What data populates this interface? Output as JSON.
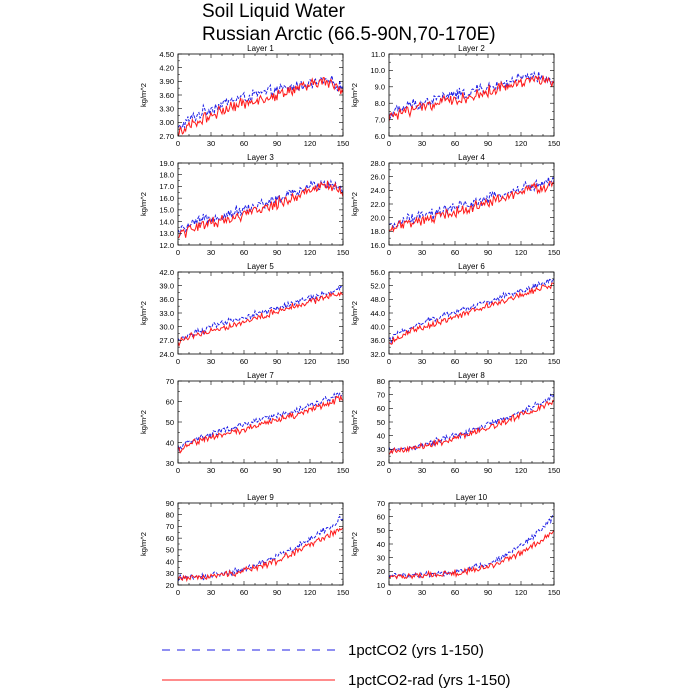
{
  "figure": {
    "title_line1": "Soil Liquid Water",
    "title_line2": "Russian Arctic (66.5-90N,70-170E)"
  },
  "legend": [
    {
      "label": "1pctCO2 (yrs 1-150)",
      "color": "#1f1fe6",
      "style": "dashed"
    },
    {
      "label": "1pctCO2-rad (yrs 1-150)",
      "color": "#ff1a1a",
      "style": "solid"
    }
  ],
  "chart_data": [
    {
      "type": "line",
      "title": "Layer 1",
      "ylabel": "kg/m^2",
      "xlim": [
        0,
        150
      ],
      "ylim": [
        2.7,
        4.5
      ],
      "xticks": [
        0,
        30,
        60,
        90,
        120,
        150
      ],
      "yticks": [
        2.7,
        3.0,
        3.3,
        3.6,
        3.9,
        4.2,
        4.5
      ],
      "ytick_labels": [
        "2.70",
        "3.00",
        "3.30",
        "3.60",
        "3.90",
        "4.20",
        "4.50"
      ],
      "x": [
        0,
        10,
        20,
        30,
        40,
        50,
        60,
        70,
        80,
        90,
        100,
        110,
        120,
        130,
        140,
        150
      ],
      "series": [
        {
          "name": "1pctCO2 (yrs 1-150)",
          "values": [
            2.85,
            3.05,
            3.2,
            3.3,
            3.4,
            3.5,
            3.55,
            3.6,
            3.65,
            3.7,
            3.75,
            3.8,
            3.85,
            3.9,
            3.88,
            3.75
          ]
        },
        {
          "name": "1pctCO2-rad (yrs 1-150)",
          "values": [
            2.75,
            2.95,
            3.05,
            3.15,
            3.25,
            3.35,
            3.4,
            3.5,
            3.55,
            3.6,
            3.7,
            3.75,
            3.8,
            3.9,
            3.85,
            3.7
          ]
        }
      ]
    },
    {
      "type": "line",
      "title": "Layer 2",
      "ylabel": "kg/m^2",
      "xlim": [
        0,
        150
      ],
      "ylim": [
        6.0,
        11.0
      ],
      "xticks": [
        0,
        30,
        60,
        90,
        120,
        150
      ],
      "yticks": [
        6.0,
        7.0,
        8.0,
        9.0,
        10.0,
        11.0
      ],
      "ytick_labels": [
        "6.0",
        "7.0",
        "8.0",
        "9.0",
        "10.0",
        "11.0"
      ],
      "x": [
        0,
        10,
        20,
        30,
        40,
        50,
        60,
        70,
        80,
        90,
        100,
        110,
        120,
        130,
        140,
        150
      ],
      "series": [
        {
          "name": "1pctCO2 (yrs 1-150)",
          "values": [
            7.3,
            7.6,
            7.9,
            8.0,
            8.2,
            8.4,
            8.5,
            8.6,
            8.8,
            8.9,
            9.1,
            9.3,
            9.5,
            9.6,
            9.5,
            9.3
          ]
        },
        {
          "name": "1pctCO2-rad (yrs 1-150)",
          "values": [
            7.1,
            7.4,
            7.6,
            7.8,
            7.9,
            8.1,
            8.2,
            8.3,
            8.5,
            8.7,
            8.9,
            9.1,
            9.3,
            9.5,
            9.4,
            9.1
          ]
        }
      ]
    },
    {
      "type": "line",
      "title": "Layer 3",
      "ylabel": "kg/m^2",
      "xlim": [
        0,
        150
      ],
      "ylim": [
        12.0,
        19.0
      ],
      "xticks": [
        0,
        30,
        60,
        90,
        120,
        150
      ],
      "yticks": [
        12.0,
        13.0,
        14.0,
        15.0,
        16.0,
        17.0,
        18.0,
        19.0
      ],
      "ytick_labels": [
        "12.0",
        "13.0",
        "14.0",
        "15.0",
        "16.0",
        "17.0",
        "18.0",
        "19.0"
      ],
      "x": [
        0,
        10,
        20,
        30,
        40,
        50,
        60,
        70,
        80,
        90,
        100,
        110,
        120,
        130,
        140,
        150
      ],
      "series": [
        {
          "name": "1pctCO2 (yrs 1-150)",
          "values": [
            13.0,
            13.6,
            14.0,
            14.3,
            14.5,
            14.8,
            15.0,
            15.3,
            15.6,
            15.9,
            16.2,
            16.6,
            17.0,
            17.3,
            17.2,
            16.8
          ]
        },
        {
          "name": "1pctCO2-rad (yrs 1-150)",
          "values": [
            12.8,
            13.3,
            13.7,
            13.9,
            14.1,
            14.3,
            14.6,
            14.8,
            15.2,
            15.5,
            15.9,
            16.3,
            16.7,
            17.1,
            17.0,
            16.5
          ]
        }
      ]
    },
    {
      "type": "line",
      "title": "Layer 4",
      "ylabel": "kg/m^2",
      "xlim": [
        0,
        150
      ],
      "ylim": [
        16.0,
        28.0
      ],
      "xticks": [
        0,
        30,
        60,
        90,
        120,
        150
      ],
      "yticks": [
        16.0,
        18.0,
        20.0,
        22.0,
        24.0,
        26.0,
        28.0
      ],
      "ytick_labels": [
        "16.0",
        "18.0",
        "20.0",
        "22.0",
        "24.0",
        "26.0",
        "28.0"
      ],
      "x": [
        0,
        10,
        20,
        30,
        40,
        50,
        60,
        70,
        80,
        90,
        100,
        110,
        120,
        130,
        140,
        150
      ],
      "series": [
        {
          "name": "1pctCO2 (yrs 1-150)",
          "values": [
            18.5,
            19.3,
            19.8,
            20.2,
            20.6,
            21.0,
            21.4,
            21.8,
            22.3,
            22.7,
            23.2,
            23.7,
            24.2,
            24.7,
            25.0,
            25.3
          ]
        },
        {
          "name": "1pctCO2-rad (yrs 1-150)",
          "values": [
            18.0,
            18.8,
            19.3,
            19.6,
            20.0,
            20.4,
            20.8,
            21.2,
            21.7,
            22.2,
            22.7,
            23.2,
            23.7,
            24.2,
            24.5,
            24.7
          ]
        }
      ]
    },
    {
      "type": "line",
      "title": "Layer 5",
      "ylabel": "kg/m^2",
      "xlim": [
        0,
        150
      ],
      "ylim": [
        24.0,
        42.0
      ],
      "xticks": [
        0,
        30,
        60,
        90,
        120,
        150
      ],
      "yticks": [
        24.0,
        27.0,
        30.0,
        33.0,
        36.0,
        39.0,
        42.0
      ],
      "ytick_labels": [
        "24.0",
        "27.0",
        "30.0",
        "33.0",
        "36.0",
        "39.0",
        "42.0"
      ],
      "x": [
        0,
        10,
        20,
        30,
        40,
        50,
        60,
        70,
        80,
        90,
        100,
        110,
        120,
        130,
        140,
        150
      ],
      "series": [
        {
          "name": "1pctCO2 (yrs 1-150)",
          "values": [
            27.0,
            28.3,
            29.1,
            29.9,
            30.6,
            31.3,
            32.0,
            32.7,
            33.4,
            34.1,
            34.8,
            35.5,
            36.2,
            36.9,
            37.6,
            38.5
          ]
        },
        {
          "name": "1pctCO2-rad (yrs 1-150)",
          "values": [
            26.5,
            27.8,
            28.5,
            29.1,
            29.7,
            30.4,
            31.1,
            31.8,
            32.6,
            33.4,
            34.1,
            34.8,
            35.5,
            36.2,
            36.9,
            37.5
          ]
        }
      ]
    },
    {
      "type": "line",
      "title": "Layer 6",
      "ylabel": "kg/m^2",
      "xlim": [
        0,
        150
      ],
      "ylim": [
        32.0,
        56.0
      ],
      "xticks": [
        0,
        30,
        60,
        90,
        120,
        150
      ],
      "yticks": [
        32.0,
        36.0,
        40.0,
        44.0,
        48.0,
        52.0,
        56.0
      ],
      "ytick_labels": [
        "32.0",
        "36.0",
        "40.0",
        "44.0",
        "48.0",
        "52.0",
        "56.0"
      ],
      "x": [
        0,
        10,
        20,
        30,
        40,
        50,
        60,
        70,
        80,
        90,
        100,
        110,
        120,
        130,
        140,
        150
      ],
      "series": [
        {
          "name": "1pctCO2 (yrs 1-150)",
          "values": [
            36.0,
            38.3,
            39.8,
            41.0,
            42.2,
            43.3,
            44.4,
            45.4,
            46.4,
            47.4,
            48.4,
            49.4,
            50.5,
            51.5,
            52.7,
            54.0
          ]
        },
        {
          "name": "1pctCO2-rad (yrs 1-150)",
          "values": [
            35.0,
            37.2,
            38.6,
            39.6,
            40.7,
            41.8,
            42.9,
            43.9,
            45.0,
            46.0,
            47.1,
            48.2,
            49.3,
            50.4,
            51.4,
            52.3
          ]
        }
      ]
    },
    {
      "type": "line",
      "title": "Layer 7",
      "ylabel": "kg/m^2",
      "xlim": [
        0,
        150
      ],
      "ylim": [
        30,
        70
      ],
      "xticks": [
        0,
        30,
        60,
        90,
        120,
        150
      ],
      "yticks": [
        30,
        40,
        50,
        60,
        70
      ],
      "ytick_labels": [
        "30",
        "40",
        "50",
        "60",
        "70"
      ],
      "x": [
        0,
        10,
        20,
        30,
        40,
        50,
        60,
        70,
        80,
        90,
        100,
        110,
        120,
        130,
        140,
        150
      ],
      "series": [
        {
          "name": "1pctCO2 (yrs 1-150)",
          "values": [
            37,
            40.5,
            42.5,
            44,
            45.5,
            47,
            48.5,
            50,
            51.5,
            53,
            54.5,
            56,
            58,
            60,
            62,
            64
          ]
        },
        {
          "name": "1pctCO2-rad (yrs 1-150)",
          "values": [
            36,
            39.5,
            41,
            42.3,
            43.7,
            45,
            46.5,
            48,
            49.5,
            51,
            52.5,
            54,
            56,
            58,
            60,
            61.5
          ]
        }
      ]
    },
    {
      "type": "line",
      "title": "Layer 8",
      "ylabel": "kg/m^2",
      "xlim": [
        0,
        150
      ],
      "ylim": [
        20,
        80
      ],
      "xticks": [
        0,
        30,
        60,
        90,
        120,
        150
      ],
      "yticks": [
        20,
        30,
        40,
        50,
        60,
        70,
        80
      ],
      "ytick_labels": [
        "20",
        "30",
        "40",
        "50",
        "60",
        "70",
        "80"
      ],
      "x": [
        0,
        10,
        20,
        30,
        40,
        50,
        60,
        70,
        80,
        90,
        100,
        110,
        120,
        130,
        140,
        150
      ],
      "series": [
        {
          "name": "1pctCO2 (yrs 1-150)",
          "values": [
            29,
            30,
            31.5,
            33,
            35,
            37.5,
            40,
            42.5,
            45,
            48,
            51,
            54,
            57.5,
            61,
            65,
            70
          ]
        },
        {
          "name": "1pctCO2-rad (yrs 1-150)",
          "values": [
            28,
            29,
            30.5,
            32,
            34,
            36,
            38.5,
            41,
            43.5,
            46,
            49,
            52,
            55,
            58,
            62,
            65
          ]
        }
      ]
    },
    {
      "type": "line",
      "title": "Layer 9",
      "ylabel": "kg/m^2",
      "xlim": [
        0,
        150
      ],
      "ylim": [
        20,
        90
      ],
      "xticks": [
        0,
        30,
        60,
        90,
        120,
        150
      ],
      "yticks": [
        20,
        30,
        40,
        50,
        60,
        70,
        80,
        90
      ],
      "ytick_labels": [
        "20",
        "30",
        "40",
        "50",
        "60",
        "70",
        "80",
        "90"
      ],
      "x": [
        0,
        10,
        20,
        30,
        40,
        50,
        60,
        70,
        80,
        90,
        100,
        110,
        120,
        130,
        140,
        150
      ],
      "series": [
        {
          "name": "1pctCO2 (yrs 1-150)",
          "values": [
            26,
            26.5,
            27,
            28,
            29.5,
            31.5,
            34,
            37,
            40.5,
            44.5,
            49,
            54,
            59,
            65,
            71,
            78
          ]
        },
        {
          "name": "1pctCO2-rad (yrs 1-150)",
          "values": [
            26,
            26.3,
            26.7,
            27.5,
            28.7,
            30,
            32,
            34.5,
            37.5,
            41,
            45,
            49.5,
            54,
            59,
            64,
            70
          ]
        }
      ]
    },
    {
      "type": "line",
      "title": "Layer 10",
      "ylabel": "kg/m^2",
      "xlim": [
        0,
        150
      ],
      "ylim": [
        10,
        70
      ],
      "xticks": [
        0,
        30,
        60,
        90,
        120,
        150
      ],
      "yticks": [
        10,
        20,
        30,
        40,
        50,
        60,
        70
      ],
      "ytick_labels": [
        "10",
        "20",
        "30",
        "40",
        "50",
        "60",
        "70"
      ],
      "x": [
        0,
        10,
        20,
        30,
        40,
        50,
        60,
        70,
        80,
        90,
        100,
        110,
        120,
        130,
        140,
        150
      ],
      "series": [
        {
          "name": "1pctCO2 (yrs 1-150)",
          "values": [
            17,
            17,
            17.2,
            17.5,
            18,
            18.8,
            20,
            21.5,
            23.5,
            26,
            29.5,
            34,
            39,
            45,
            52,
            61
          ]
        },
        {
          "name": "1pctCO2-rad (yrs 1-150)",
          "values": [
            16.5,
            16.6,
            16.8,
            17,
            17.4,
            18,
            18.8,
            20,
            21.5,
            23.5,
            26,
            29.5,
            33.5,
            38.5,
            44,
            49
          ]
        }
      ]
    }
  ]
}
